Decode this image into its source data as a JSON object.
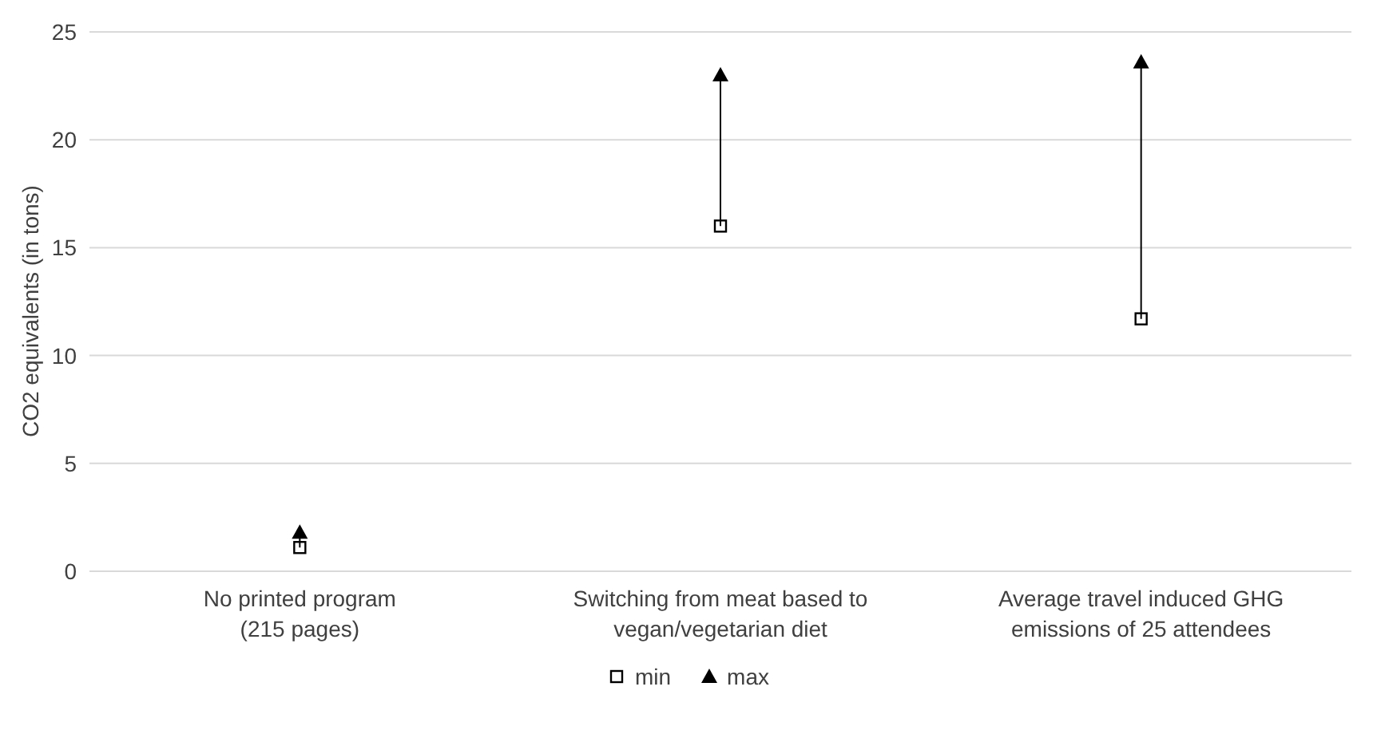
{
  "chart_data": {
    "type": "scatter",
    "ylabel": "CO2 equivalents  (in tons)",
    "categories": [
      "No printed program (215 pages)",
      "Switching from meat based to vegan/vegetarian diet",
      "Average travel induced GHG emissions of 25 attendees"
    ],
    "series": [
      {
        "name": "min",
        "color": "#000000",
        "marker": "square",
        "values": [
          1.1,
          16,
          11.7
        ]
      },
      {
        "name": "max",
        "color": "#000000",
        "marker": "triangle",
        "values": [
          1.8,
          23,
          23.6
        ]
      }
    ],
    "ylim": [
      0,
      25
    ],
    "yticks": [
      0,
      5,
      10,
      15,
      20,
      25
    ],
    "grid": "y",
    "legend": "bottom"
  }
}
